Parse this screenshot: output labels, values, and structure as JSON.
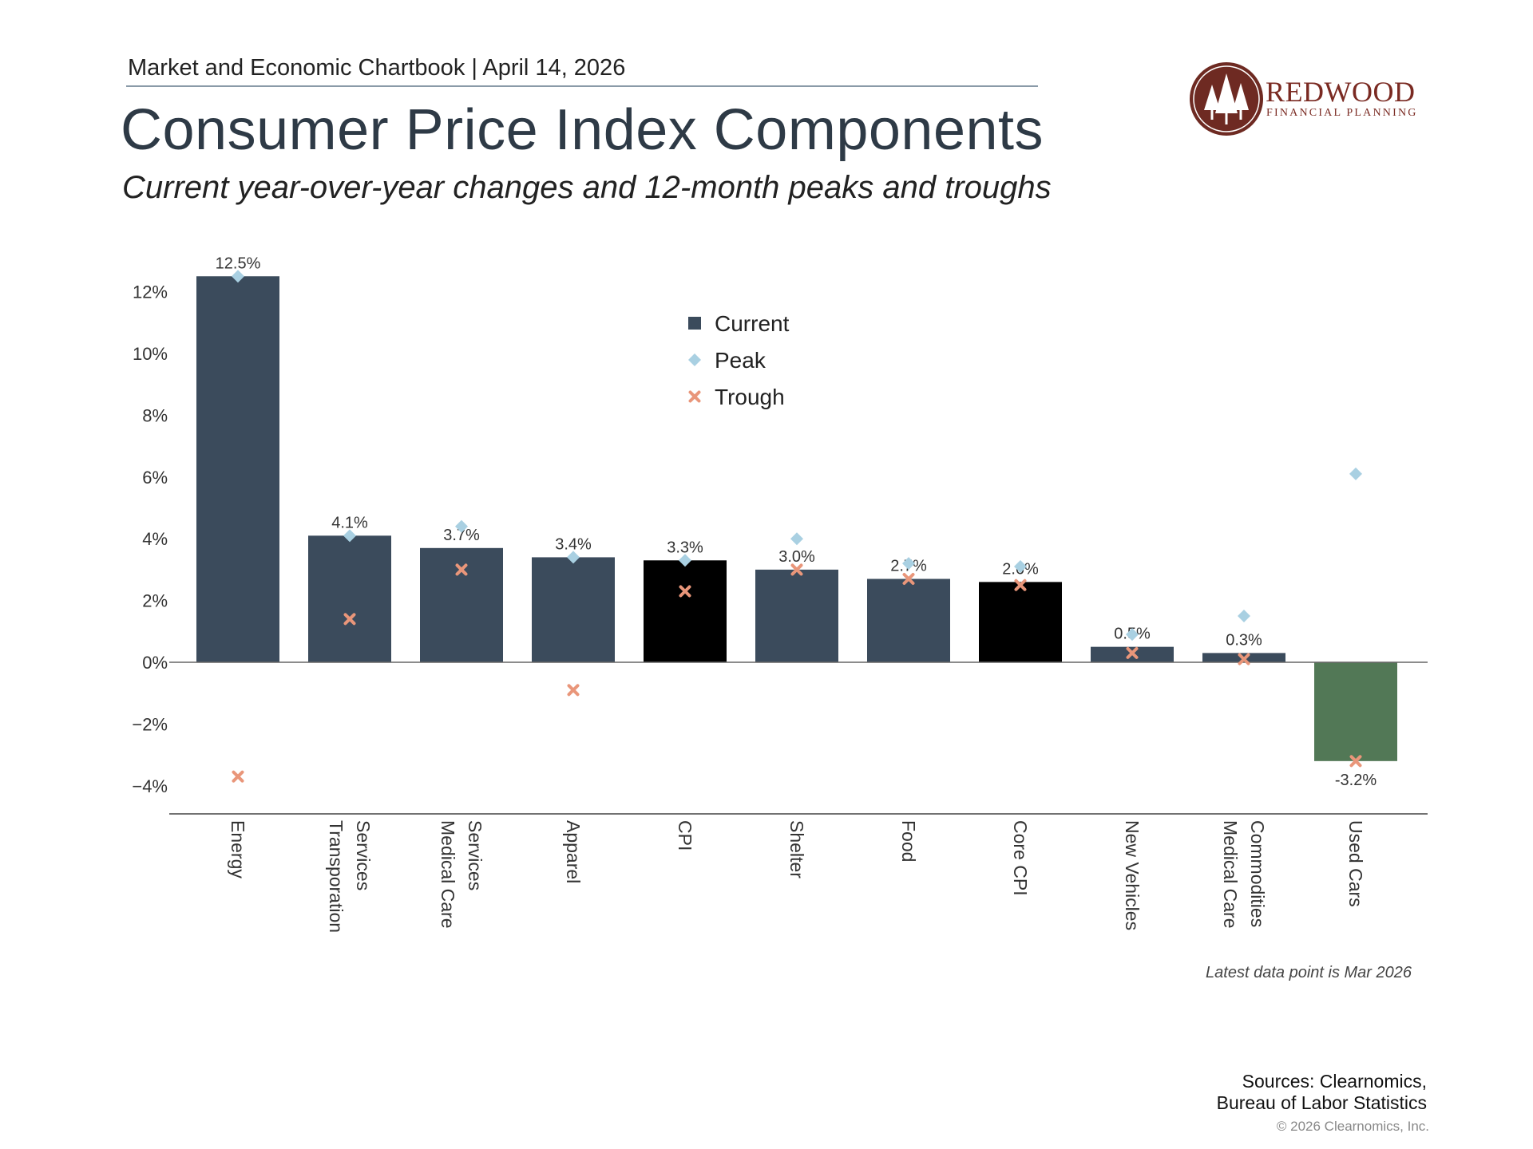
{
  "header": {
    "top_line": "Market and Economic Chartbook | April 14, 2026",
    "title": "Consumer Price Index Components",
    "subtitle": "Current year-over-year changes and 12-month peaks and troughs"
  },
  "logo": {
    "name": "REDWOOD",
    "tagline": "FINANCIAL PLANNING"
  },
  "chart_data": {
    "type": "bar",
    "categories": [
      [
        "Energy"
      ],
      [
        "Transporation",
        "Services"
      ],
      [
        "Medical Care",
        "Services"
      ],
      [
        "Apparel"
      ],
      [
        "CPI"
      ],
      [
        "Shelter"
      ],
      [
        "Food"
      ],
      [
        "Core CPI"
      ],
      [
        "New Vehicles"
      ],
      [
        "Medical Care",
        "Commodities"
      ],
      [
        "Used Cars"
      ]
    ],
    "series": [
      {
        "name": "Current",
        "values": [
          12.5,
          4.1,
          3.7,
          3.4,
          3.3,
          3.0,
          2.7,
          2.6,
          0.5,
          0.3,
          -3.2
        ]
      },
      {
        "name": "Peak",
        "values": [
          12.5,
          4.1,
          4.4,
          3.4,
          3.3,
          4.0,
          3.2,
          3.1,
          0.9,
          1.5,
          6.1
        ]
      },
      {
        "name": "Trough",
        "values": [
          -3.7,
          1.4,
          3.0,
          -0.9,
          2.3,
          3.0,
          2.7,
          2.5,
          0.3,
          0.1,
          -3.2
        ]
      }
    ],
    "data_labels": [
      "12.5%",
      "4.1%",
      "3.7%",
      "3.4%",
      "3.3%",
      "3.0%",
      "2.7%",
      "2.6%",
      "0.5%",
      "0.3%",
      "-3.2%"
    ],
    "bar_colors": [
      "#3b4b5c",
      "#3b4b5c",
      "#3b4b5c",
      "#3b4b5c",
      "#000000",
      "#3b4b5c",
      "#3b4b5c",
      "#000000",
      "#3b4b5c",
      "#3b4b5c",
      "#527856"
    ],
    "colors": {
      "current": "#3b4b5c",
      "peak": "#a9d0e2",
      "trough": "#e9967a",
      "highlight": "#000000",
      "negative": "#527856"
    },
    "ylim": [
      -5,
      12.5
    ],
    "yticks": [
      12,
      10,
      8,
      6,
      4,
      2,
      0,
      -2,
      -4
    ],
    "ytick_labels": [
      "12%",
      "10%",
      "8%",
      "6%",
      "4%",
      "2%",
      "0%",
      "−2%",
      "−4%"
    ],
    "legend_position": "top-center",
    "grid": false,
    "xlabel": "",
    "ylabel": ""
  },
  "footer": {
    "note": "Latest data point is Mar 2026",
    "sources_line1": "Sources: Clearnomics,",
    "sources_line2": "Bureau of Labor Statistics",
    "copyright": "© 2026 Clearnomics, Inc."
  }
}
